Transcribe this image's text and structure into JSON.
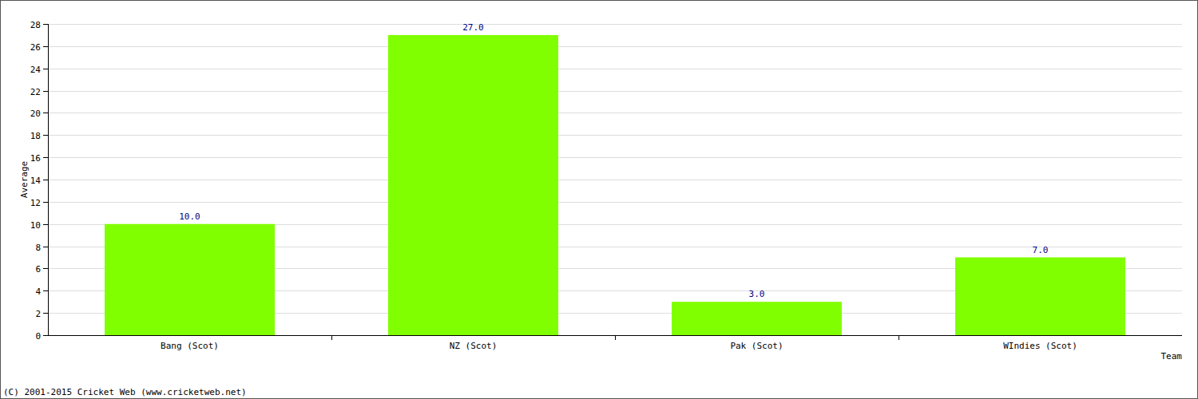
{
  "chart_data": {
    "type": "bar",
    "x_label": "Team",
    "y_label": "Average",
    "source": "(C) 2001-2015 Cricket Web (www.cricketweb.net)",
    "categories": [
      "Bang (Scot)",
      "NZ (Scot)",
      "Pak (Scot)",
      "WIndies (Scot)"
    ],
    "values": [
      10,
      27,
      3,
      7
    ],
    "value_labels": [
      "10.0",
      "27.0",
      "3.0",
      "7.0"
    ],
    "color": "#80ff00",
    "ylim": [
      0,
      28
    ],
    "yticks": [
      0,
      2,
      4,
      6,
      8,
      10,
      12,
      14,
      16,
      18,
      20,
      22,
      24,
      26,
      28
    ],
    "grid": true,
    "data_labels": true
  }
}
